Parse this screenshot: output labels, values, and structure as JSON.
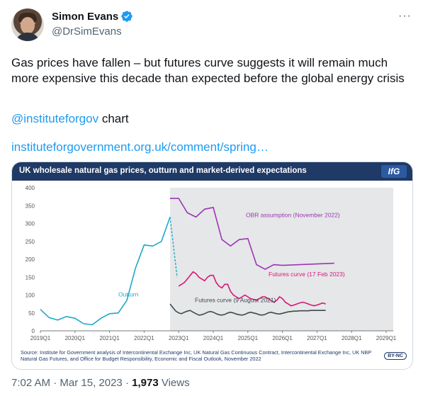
{
  "tweet": {
    "display_name": "Simon Evans",
    "handle": "@DrSimEvans",
    "more_label": "···",
    "text": "Gas prices have fallen – but futures curve suggests it will remain much more expensive this decade than expected before the global energy crisis",
    "mention": "@institutefor­gov",
    "mention_suffix": " chart",
    "link": "instituteforgovernment.org.uk/comment/spring…",
    "time": "7:02 AM",
    "date_sep": " · ",
    "date": "Mar 15, 2023",
    "views_count": "1,973",
    "views_label": " Views"
  },
  "chart_card": {
    "title": "UK wholesale natural gas prices, outturn and market-derived expectations",
    "logo": "IfG",
    "source": "Source: Institute for Government analysis of Intercontinental Exchange Inc, UK Natural Gas Continuous Contract, Intercontinental Exchange Inc, UK NBP Natural Gas Futures, and Office for Budget Responsibility, Economic and Fiscal Outlook, November 2022",
    "license": "BY-NC",
    "colors": {
      "title_bar": "#1f3a66",
      "outturn": "#1fa9c9",
      "obr": "#9b35b5",
      "feb": "#d6187a",
      "aug": "#3d4a4f",
      "shade": "#e6e7e8"
    }
  },
  "chart_data": {
    "type": "line",
    "title": "UK wholesale natural gas prices, outturn and market-derived expectations",
    "xlabel": "",
    "ylabel": "",
    "ylim": [
      0,
      400
    ],
    "yticks": [
      "0",
      "50",
      "100",
      "150",
      "200",
      "250",
      "300",
      "350",
      "400"
    ],
    "xticks": [
      "2019Q1",
      "2020Q1",
      "2021Q1",
      "2022Q1",
      "2023Q1",
      "2024Q1",
      "2025Q1",
      "2026Q1",
      "2027Q1",
      "2028Q1",
      "2029Q1"
    ],
    "grid": false,
    "shaded_from": "2022Q4",
    "series": [
      {
        "name": "Outturn",
        "x_start": "2019Q1",
        "step_months": 3,
        "values": [
          60,
          37,
          30,
          40,
          35,
          20,
          17,
          35,
          48,
          50,
          85,
          175,
          240,
          237,
          250,
          318
        ]
      },
      {
        "name": "OBR assumption (November 2022)",
        "x_start": "2022Q4",
        "step_months": 3,
        "values": [
          370,
          370,
          330,
          318,
          340,
          345,
          255,
          237,
          255,
          258,
          185,
          172,
          185,
          183,
          184,
          185,
          186,
          187,
          188,
          189
        ]
      },
      {
        "name": "Futures curve (17 Feb 2023)",
        "x_start": "2023Q1",
        "step_months": 1,
        "values": [
          125,
          130,
          135,
          145,
          155,
          165,
          160,
          150,
          145,
          140,
          150,
          155,
          155,
          135,
          125,
          120,
          130,
          130,
          110,
          100,
          95,
          90,
          95,
          100,
          95,
          90,
          88,
          85,
          90,
          95,
          95,
          90,
          85,
          80,
          85,
          95,
          90,
          80,
          75,
          70,
          72,
          75,
          78,
          80,
          78,
          75,
          72,
          70,
          72,
          75,
          78,
          75
        ]
      },
      {
        "name": "Futures curve (9 August 2021)",
        "x_start": "2022Q4",
        "step_months": 1,
        "values": [
          75,
          65,
          55,
          50,
          48,
          52,
          55,
          57,
          52,
          48,
          44,
          45,
          48,
          52,
          54,
          52,
          48,
          45,
          44,
          46,
          50,
          52,
          50,
          47,
          45,
          44,
          46,
          50,
          52,
          50,
          48,
          45,
          44,
          46,
          50,
          52,
          50,
          48,
          47,
          49,
          51,
          53,
          54,
          55,
          55,
          56,
          56,
          56,
          56,
          57,
          57,
          57,
          57,
          57,
          57
        ]
      }
    ],
    "connector_values": [
      318,
      150
    ],
    "annotations": [
      "OBR assumption (November 2022)",
      "Futures curve (17 Feb 2023)",
      "Futures curve (9 August 2021)",
      "Outturn"
    ]
  }
}
